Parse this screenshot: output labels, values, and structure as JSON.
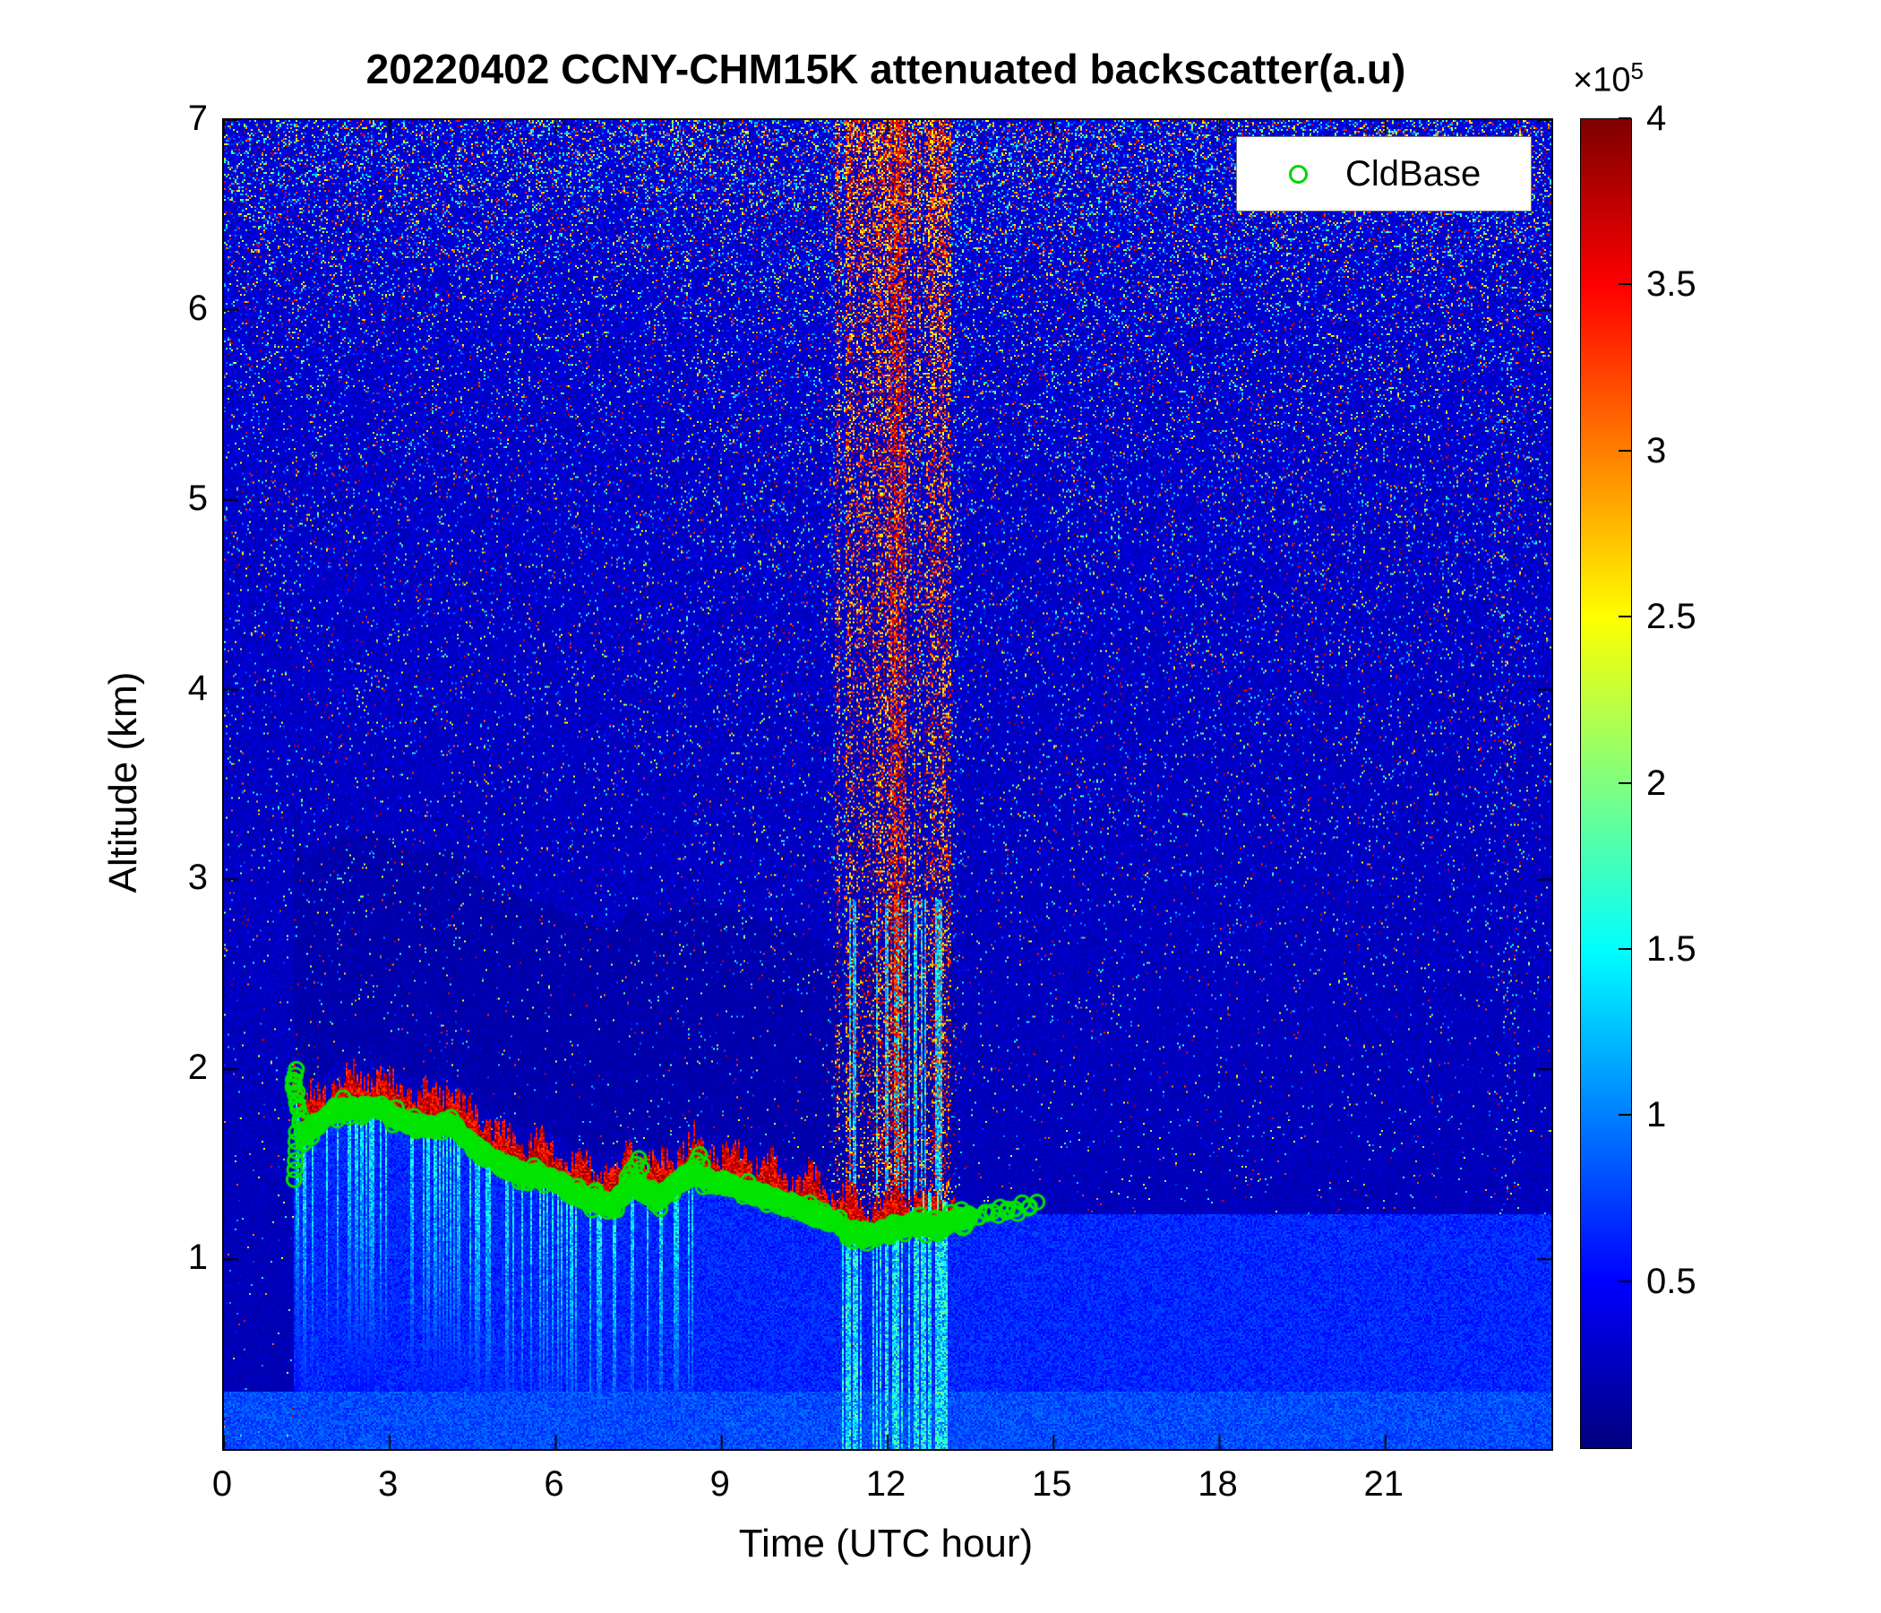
{
  "chart": {
    "title": "20220402 CCNY-CHM15K attenuated backscatter(a.u)",
    "xlabel": "Time (UTC hour)",
    "ylabel": "Altitude (km)",
    "legend": {
      "label": "CldBase"
    },
    "colorbar": {
      "exp_prefix": "×10",
      "exponent": "5"
    }
  },
  "chart_data": {
    "type": "heatmap",
    "title": "20220402 CCNY-CHM15K attenuated backscatter(a.u)",
    "xlabel": "Time (UTC hour)",
    "ylabel": "Altitude (km)",
    "x_range_hours": [
      0,
      24
    ],
    "y_range_km": [
      0,
      7
    ],
    "x_ticks": [
      0,
      3,
      6,
      9,
      12,
      15,
      18,
      21
    ],
    "y_ticks": [
      1,
      2,
      3,
      4,
      5,
      6,
      7
    ],
    "grid": false,
    "colorbar": {
      "colormap": "jet",
      "range": [
        0,
        400000
      ],
      "scale_factor": "1e5",
      "ticks": [
        0.5,
        1,
        1.5,
        2,
        2.5,
        3,
        3.5,
        4
      ]
    },
    "legend": {
      "position": "top-right",
      "entries": [
        {
          "label": "CldBase",
          "marker": "circle",
          "color": "#00D400"
        }
      ]
    },
    "series": [
      {
        "name": "CldBase",
        "type": "scatter",
        "marker": "o",
        "color": "#00E400",
        "points": [
          [
            1.25,
            1.93
          ],
          [
            1.35,
            1.78
          ],
          [
            1.45,
            1.62
          ],
          [
            1.6,
            1.7
          ],
          [
            1.8,
            1.72
          ],
          [
            2.0,
            1.78
          ],
          [
            2.3,
            1.79
          ],
          [
            2.6,
            1.8
          ],
          [
            2.9,
            1.78
          ],
          [
            3.2,
            1.72
          ],
          [
            3.5,
            1.7
          ],
          [
            3.8,
            1.7
          ],
          [
            4.1,
            1.72
          ],
          [
            4.4,
            1.62
          ],
          [
            4.7,
            1.55
          ],
          [
            5.0,
            1.5
          ],
          [
            5.3,
            1.46
          ],
          [
            5.6,
            1.44
          ],
          [
            5.9,
            1.42
          ],
          [
            6.2,
            1.36
          ],
          [
            6.5,
            1.33
          ],
          [
            6.8,
            1.3
          ],
          [
            7.1,
            1.28
          ],
          [
            7.35,
            1.42
          ],
          [
            7.6,
            1.35
          ],
          [
            7.9,
            1.32
          ],
          [
            8.2,
            1.4
          ],
          [
            8.5,
            1.46
          ],
          [
            8.75,
            1.4
          ],
          [
            9.0,
            1.4
          ],
          [
            9.3,
            1.38
          ],
          [
            9.6,
            1.34
          ],
          [
            9.9,
            1.32
          ],
          [
            10.2,
            1.28
          ],
          [
            10.5,
            1.26
          ],
          [
            10.8,
            1.22
          ],
          [
            11.1,
            1.18
          ],
          [
            11.4,
            1.14
          ],
          [
            11.7,
            1.13
          ],
          [
            12.0,
            1.15
          ],
          [
            12.3,
            1.17
          ],
          [
            12.6,
            1.18
          ],
          [
            12.9,
            1.17
          ],
          [
            13.2,
            1.2
          ],
          [
            13.5,
            1.23
          ],
          [
            13.9,
            1.25
          ],
          [
            14.3,
            1.26
          ],
          [
            14.7,
            1.3
          ]
        ],
        "extra_points": [
          [
            1.27,
            1.42
          ],
          [
            1.28,
            1.47
          ],
          [
            1.29,
            1.52
          ],
          [
            1.3,
            1.57
          ],
          [
            1.3,
            1.62
          ],
          [
            1.31,
            1.67
          ],
          [
            1.27,
            1.93
          ],
          [
            1.29,
            1.97
          ],
          [
            1.31,
            2.0
          ],
          [
            1.33,
            1.88
          ],
          [
            7.45,
            1.5
          ],
          [
            7.5,
            1.53
          ],
          [
            7.55,
            1.48
          ],
          [
            8.55,
            1.52
          ],
          [
            8.6,
            1.55
          ],
          [
            8.65,
            1.5
          ],
          [
            13.65,
            1.22
          ],
          [
            13.8,
            1.24
          ],
          [
            14.0,
            1.23
          ],
          [
            14.15,
            1.25
          ],
          [
            14.35,
            1.24
          ],
          [
            14.55,
            1.27
          ],
          [
            14.7,
            1.3
          ]
        ]
      }
    ],
    "field_features": {
      "background": "speckled low attenuated backscatter (dark blue), noise density increasing with altitude",
      "cloud_layer": "high backscatter (dark red) band descending from ~1.9 km at 01:30 UTC to ~1.15 km around 12:00 UTC, ending ~13:15 UTC",
      "virga_streaks_hours": [
        1.3,
        8.6
      ],
      "noise_columns_hours": [
        10.9,
        13.4
      ],
      "faint_noise_column_hours": [
        23.0,
        23.45
      ],
      "boundary_layer_after_cloud": "shallow aerosol layer below ~1.25 km from 13:15 UTC to 24:00 UTC",
      "surface_bright_strip_km": 0.3
    },
    "render_noise": {
      "seed": 7,
      "speckle_base": 0.012,
      "speckle_alt_coef": 0.16,
      "alt_exponent": 2.3,
      "top_band_km": [
        5.8,
        7.0
      ],
      "streak_window_hours": [
        10.85,
        13.45
      ],
      "strong_column_hours": [
        12.05,
        12.35
      ]
    }
  }
}
